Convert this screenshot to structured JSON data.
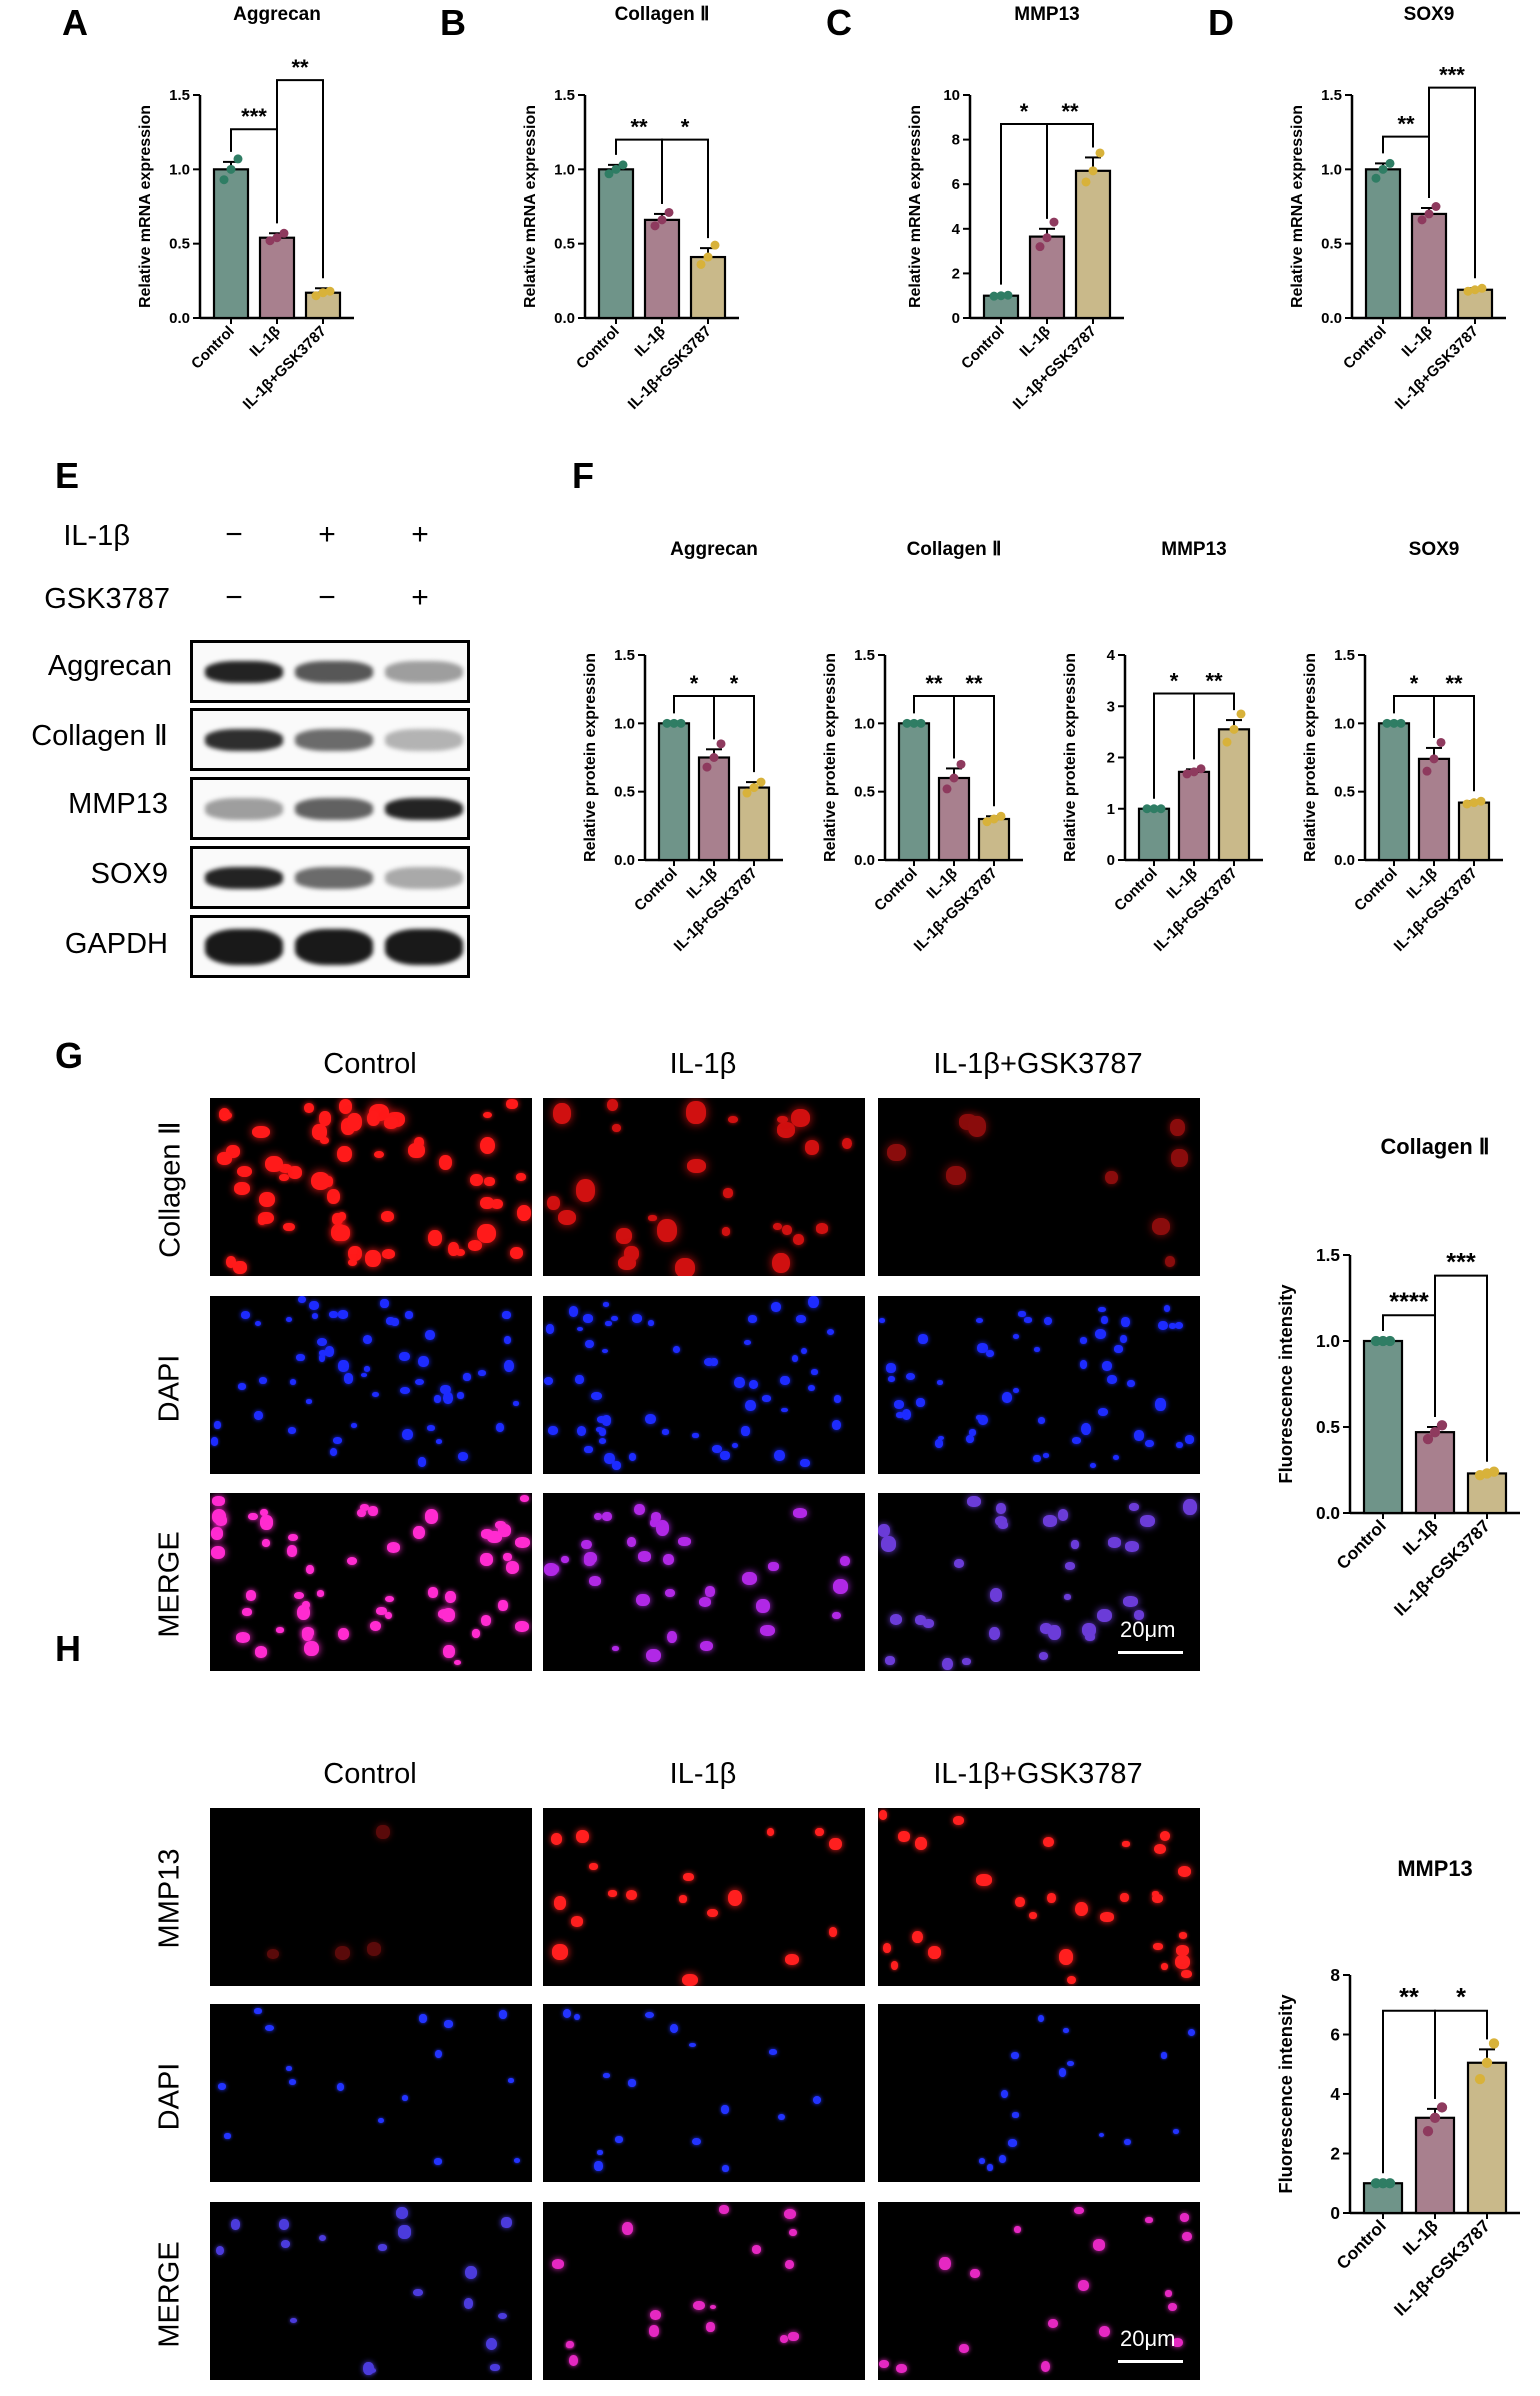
{
  "panels": {
    "A": "A",
    "B": "B",
    "C": "C",
    "D": "D",
    "E": "E",
    "F": "F",
    "G": "G",
    "H": "H"
  },
  "colors": {
    "control": "#6f9489",
    "il1b": "#a8808e",
    "il1b_gsk": "#c9b98a",
    "dot_control": "#2f7d64",
    "dot_il1b": "#8e3a5e",
    "dot_il1b_gsk": "#d8b23a"
  },
  "chart_data": [
    {
      "id": "A",
      "type": "bar",
      "title": "Aggrecan",
      "ylabel": "Relative mRNA expression",
      "categories": [
        "Control",
        "IL-1β",
        "IL-1β+GSK3787"
      ],
      "values": [
        1.0,
        0.54,
        0.17
      ],
      "errors": [
        0.05,
        0.03,
        0.03
      ],
      "points": [
        [
          0.93,
          1.0,
          1.07
        ],
        [
          0.52,
          0.54,
          0.57
        ],
        [
          0.15,
          0.17,
          0.18
        ]
      ],
      "yticks": [
        0.0,
        0.5,
        1.0,
        1.5
      ],
      "ytick_labels": [
        "0.0",
        "0.5",
        "1.0",
        "1.5"
      ],
      "ylim": [
        0,
        1.5
      ],
      "sig": [
        {
          "from": 0,
          "to": 1,
          "label": "***",
          "y": 1.27
        },
        {
          "from": 1,
          "to": 2,
          "label": "**",
          "y": 1.6
        }
      ]
    },
    {
      "id": "B",
      "type": "bar",
      "title": "Collagen Ⅱ",
      "ylabel": "Relative mRNA expression",
      "categories": [
        "Control",
        "IL-1β",
        "IL-1β+GSK3787"
      ],
      "values": [
        1.0,
        0.66,
        0.41
      ],
      "errors": [
        0.03,
        0.04,
        0.06
      ],
      "points": [
        [
          0.97,
          1.0,
          1.03
        ],
        [
          0.62,
          0.66,
          0.71
        ],
        [
          0.36,
          0.41,
          0.49
        ]
      ],
      "yticks": [
        0.0,
        0.5,
        1.0,
        1.5
      ],
      "ytick_labels": [
        "0.0",
        "0.5",
        "1.0",
        "1.5"
      ],
      "ylim": [
        0,
        1.5
      ],
      "sig": [
        {
          "from": 0,
          "to": 1,
          "label": "**",
          "y": 1.2
        },
        {
          "from": 1,
          "to": 2,
          "label": "*",
          "y": 1.2
        }
      ]
    },
    {
      "id": "C",
      "type": "bar",
      "title": "MMP13",
      "ylabel": "Relative mRNA expression",
      "categories": [
        "Control",
        "IL-1β",
        "IL-1β+GSK3787"
      ],
      "values": [
        1.0,
        3.65,
        6.6
      ],
      "errors": [
        0.05,
        0.35,
        0.6
      ],
      "points": [
        [
          0.98,
          1.0,
          1.02
        ],
        [
          3.2,
          3.6,
          4.3
        ],
        [
          6.1,
          6.6,
          7.4
        ]
      ],
      "yticks": [
        0,
        2,
        4,
        6,
        8,
        10
      ],
      "ytick_labels": [
        "0",
        "2",
        "4",
        "6",
        "8",
        "10"
      ],
      "ylim": [
        0,
        10
      ],
      "sig": [
        {
          "from": 0,
          "to": 1,
          "label": "*",
          "y": 8.7
        },
        {
          "from": 1,
          "to": 2,
          "label": "**",
          "y": 8.7
        }
      ]
    },
    {
      "id": "D",
      "type": "bar",
      "title": "SOX9",
      "ylabel": "Relative mRNA expression",
      "categories": [
        "Control",
        "IL-1β",
        "IL-1β+GSK3787"
      ],
      "values": [
        1.0,
        0.7,
        0.19
      ],
      "errors": [
        0.04,
        0.04,
        0.01
      ],
      "points": [
        [
          0.94,
          1.0,
          1.04
        ],
        [
          0.66,
          0.7,
          0.75
        ],
        [
          0.18,
          0.19,
          0.2
        ]
      ],
      "yticks": [
        0.0,
        0.5,
        1.0,
        1.5
      ],
      "ytick_labels": [
        "0.0",
        "0.5",
        "1.0",
        "1.5"
      ],
      "ylim": [
        0,
        1.5
      ],
      "sig": [
        {
          "from": 0,
          "to": 1,
          "label": "**",
          "y": 1.22
        },
        {
          "from": 1,
          "to": 2,
          "label": "***",
          "y": 1.55
        }
      ]
    },
    {
      "id": "F1",
      "type": "bar",
      "title": "Aggrecan",
      "ylabel": "Relative protein expression",
      "categories": [
        "Control",
        "IL-1β",
        "IL-1β+GSK3787"
      ],
      "values": [
        1.0,
        0.75,
        0.53
      ],
      "errors": [
        0.0,
        0.06,
        0.04
      ],
      "points": [
        [
          1.0,
          1.0,
          1.0
        ],
        [
          0.68,
          0.75,
          0.85
        ],
        [
          0.49,
          0.53,
          0.57
        ]
      ],
      "yticks": [
        0.0,
        0.5,
        1.0,
        1.5
      ],
      "ytick_labels": [
        "0.0",
        "0.5",
        "1.0",
        "1.5"
      ],
      "ylim": [
        0,
        1.5
      ],
      "sig": [
        {
          "from": 0,
          "to": 1,
          "label": "*",
          "y": 1.2
        },
        {
          "from": 1,
          "to": 2,
          "label": "*",
          "y": 1.2
        }
      ]
    },
    {
      "id": "F2",
      "type": "bar",
      "title": "Collagen Ⅱ",
      "ylabel": "Relative protein expression",
      "categories": [
        "Control",
        "IL-1β",
        "IL-1β+GSK3787"
      ],
      "values": [
        1.0,
        0.6,
        0.3
      ],
      "errors": [
        0.0,
        0.07,
        0.02
      ],
      "points": [
        [
          1.0,
          1.0,
          1.0
        ],
        [
          0.52,
          0.6,
          0.7
        ],
        [
          0.28,
          0.3,
          0.32
        ]
      ],
      "yticks": [
        0.0,
        0.5,
        1.0,
        1.5
      ],
      "ytick_labels": [
        "0.0",
        "0.5",
        "1.0",
        "1.5"
      ],
      "ylim": [
        0,
        1.5
      ],
      "sig": [
        {
          "from": 0,
          "to": 1,
          "label": "**",
          "y": 1.2
        },
        {
          "from": 1,
          "to": 2,
          "label": "**",
          "y": 1.2
        }
      ]
    },
    {
      "id": "F3",
      "type": "bar",
      "title": "MMP13",
      "ylabel": "Relative protein expression",
      "categories": [
        "Control",
        "IL-1β",
        "IL-1β+GSK3787"
      ],
      "values": [
        1.0,
        1.72,
        2.55
      ],
      "errors": [
        0.0,
        0.05,
        0.18
      ],
      "points": [
        [
          1.0,
          1.0,
          1.0
        ],
        [
          1.68,
          1.72,
          1.78
        ],
        [
          2.3,
          2.55,
          2.85
        ]
      ],
      "yticks": [
        0,
        1,
        2,
        3,
        4
      ],
      "ytick_labels": [
        "0",
        "1",
        "2",
        "3",
        "4"
      ],
      "ylim": [
        0,
        4
      ],
      "sig": [
        {
          "from": 0,
          "to": 1,
          "label": "*",
          "y": 3.25
        },
        {
          "from": 1,
          "to": 2,
          "label": "**",
          "y": 3.25
        }
      ]
    },
    {
      "id": "F4",
      "type": "bar",
      "title": "SOX9",
      "ylabel": "Relative protein expression",
      "categories": [
        "Control",
        "IL-1β",
        "IL-1β+GSK3787"
      ],
      "values": [
        1.0,
        0.74,
        0.42
      ],
      "errors": [
        0.0,
        0.08,
        0.01
      ],
      "points": [
        [
          1.0,
          1.0,
          1.0
        ],
        [
          0.65,
          0.74,
          0.86
        ],
        [
          0.41,
          0.42,
          0.43
        ]
      ],
      "yticks": [
        0.0,
        0.5,
        1.0,
        1.5
      ],
      "ytick_labels": [
        "0.0",
        "0.5",
        "1.0",
        "1.5"
      ],
      "ylim": [
        0,
        1.5
      ],
      "sig": [
        {
          "from": 0,
          "to": 1,
          "label": "*",
          "y": 1.2
        },
        {
          "from": 1,
          "to": 2,
          "label": "**",
          "y": 1.2
        }
      ]
    },
    {
      "id": "G",
      "type": "bar",
      "title": "Collagen Ⅱ",
      "ylabel": "Fluorescence intensity",
      "categories": [
        "Control",
        "IL-1β",
        "IL-1β+GSK3787"
      ],
      "values": [
        1.0,
        0.47,
        0.23
      ],
      "errors": [
        0.0,
        0.03,
        0.01
      ],
      "points": [
        [
          1.0,
          1.0,
          1.0
        ],
        [
          0.43,
          0.47,
          0.51
        ],
        [
          0.22,
          0.23,
          0.24
        ]
      ],
      "yticks": [
        0.0,
        0.5,
        1.0,
        1.5
      ],
      "ytick_labels": [
        "0.0",
        "0.5",
        "1.0",
        "1.5"
      ],
      "ylim": [
        0,
        1.5
      ],
      "sig": [
        {
          "from": 0,
          "to": 1,
          "label": "****",
          "y": 1.15
        },
        {
          "from": 1,
          "to": 2,
          "label": "***",
          "y": 1.38
        }
      ]
    },
    {
      "id": "H",
      "type": "bar",
      "title": "MMP13",
      "ylabel": "Fluorescence intensity",
      "categories": [
        "Control",
        "IL-1β",
        "IL-1β+GSK3787"
      ],
      "values": [
        1.0,
        3.2,
        5.05
      ],
      "errors": [
        0.0,
        0.3,
        0.45
      ],
      "points": [
        [
          1.0,
          1.0,
          1.0
        ],
        [
          2.75,
          3.2,
          3.55
        ],
        [
          4.5,
          5.05,
          5.7
        ]
      ],
      "yticks": [
        0,
        2,
        4,
        6,
        8
      ],
      "ytick_labels": [
        "0",
        "2",
        "4",
        "6",
        "8"
      ],
      "ylim": [
        0,
        8
      ],
      "sig": [
        {
          "from": 0,
          "to": 1,
          "label": "**",
          "y": 6.8
        },
        {
          "from": 1,
          "to": 2,
          "label": "*",
          "y": 6.8
        }
      ]
    }
  ],
  "western": {
    "treatments": [
      {
        "label": "IL-1β",
        "signs": [
          "−",
          "+",
          "+"
        ]
      },
      {
        "label": "GSK3787",
        "signs": [
          "−",
          "−",
          "+"
        ]
      }
    ],
    "proteins": [
      "Aggrecan",
      "Collagen Ⅱ",
      "MMP13",
      "SOX9",
      "GAPDH"
    ],
    "band_intensity": [
      [
        0.95,
        0.7,
        0.35
      ],
      [
        0.9,
        0.6,
        0.25
      ],
      [
        0.35,
        0.65,
        0.95
      ],
      [
        0.95,
        0.6,
        0.3
      ],
      [
        1.0,
        1.0,
        1.0
      ]
    ]
  },
  "imaging": {
    "groups": [
      "Control",
      "IL-1β",
      "IL-1β+GSK3787"
    ],
    "g_rows": [
      "Collagen Ⅱ",
      "DAPI",
      "MERGE"
    ],
    "h_rows": [
      "MMP13",
      "DAPI",
      "MERGE"
    ],
    "scale_bar": "20μm",
    "g_density": [
      [
        1.0,
        0.45,
        0.15
      ],
      [
        1.0,
        1.0,
        1.0
      ]
    ],
    "h_density": [
      [
        0.08,
        0.6,
        1.0
      ],
      [
        1.0,
        1.0,
        1.0
      ]
    ]
  }
}
